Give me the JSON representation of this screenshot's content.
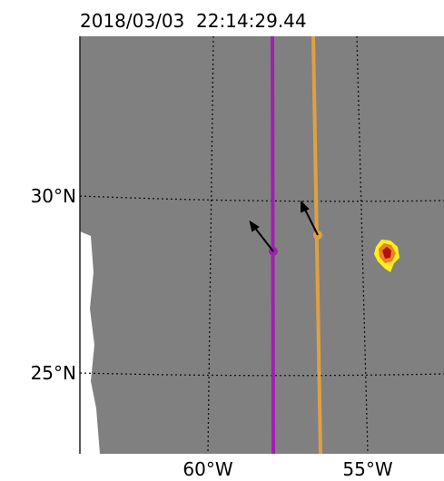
{
  "title": "2018/03/03  22:14:29.44",
  "latitude_labels": [
    "30°N",
    "25°N"
  ],
  "longitude_labels": [
    "60°W",
    "55°W"
  ]
}
